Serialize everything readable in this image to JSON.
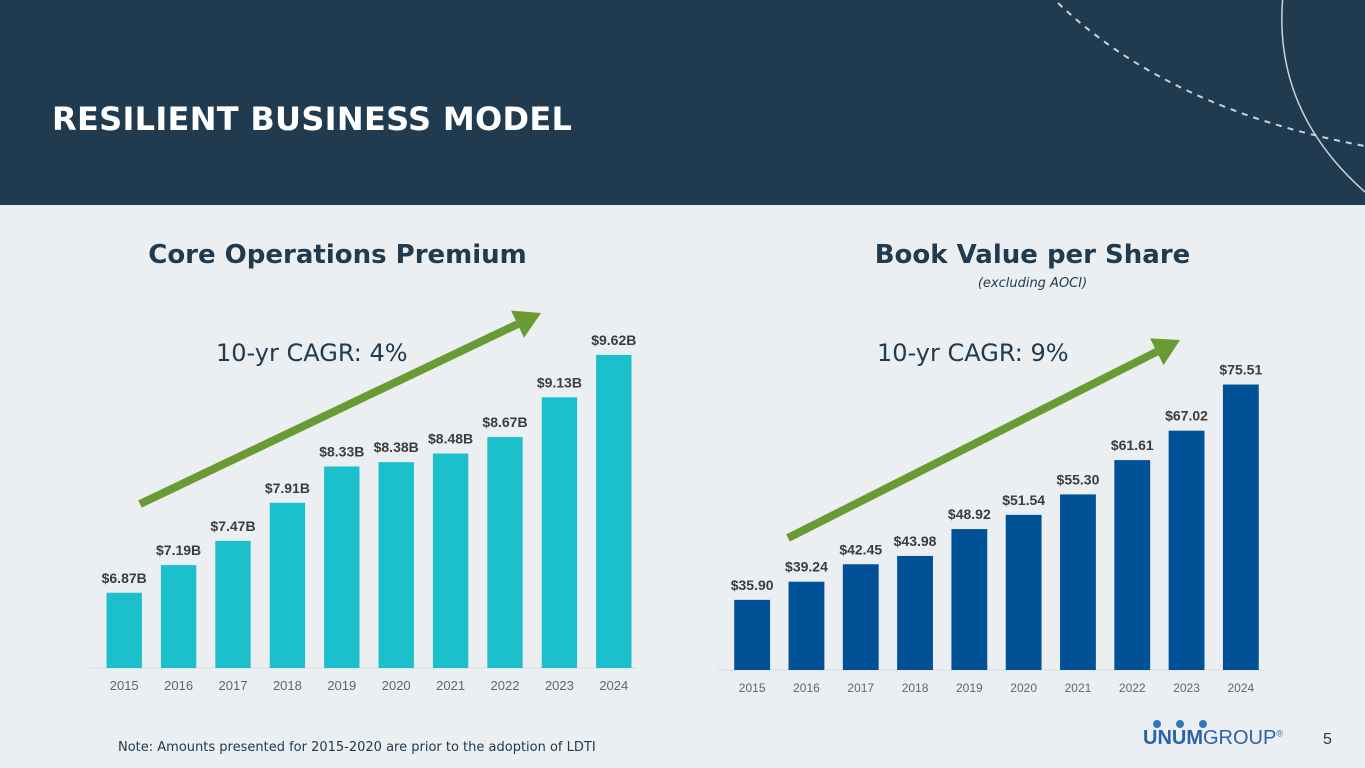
{
  "header": {
    "title": "RESILIENT BUSINESS MODEL"
  },
  "colors": {
    "header_bg": "#203a4f",
    "premium_bars": "#1cc0cc",
    "book_value_bars": "#005196",
    "trend_arrow": "#6a9a33",
    "page_bg": "#ebeff2"
  },
  "chart_data": [
    {
      "type": "bar",
      "title": "Core Operations Premium",
      "subtitle": "",
      "annotation": "10-yr CAGR: 4%",
      "categories": [
        "2015",
        "2016",
        "2017",
        "2018",
        "2019",
        "2020",
        "2021",
        "2022",
        "2023",
        "2024"
      ],
      "values": [
        6.87,
        7.19,
        7.47,
        7.91,
        8.33,
        8.38,
        8.48,
        8.67,
        9.13,
        9.62
      ],
      "data_labels": [
        "$6.87B",
        "$7.19B",
        "$7.47B",
        "$7.91B",
        "$8.33B",
        "$8.38B",
        "$8.48B",
        "$8.67B",
        "$9.13B",
        "$9.62B"
      ],
      "ylim": [
        6.0,
        9.7
      ],
      "xlabel": "",
      "ylabel": "",
      "grid": false
    },
    {
      "type": "bar",
      "title": "Book Value per Share",
      "subtitle": "(excluding AOCI)",
      "annotation": "10-yr CAGR: 9%",
      "categories": [
        "2015",
        "2016",
        "2017",
        "2018",
        "2019",
        "2020",
        "2021",
        "2022",
        "2023",
        "2024"
      ],
      "values": [
        35.9,
        39.24,
        42.45,
        43.98,
        48.92,
        51.54,
        55.3,
        61.61,
        67.02,
        75.51
      ],
      "data_labels": [
        "$35.90",
        "$39.24",
        "$42.45",
        "$43.98",
        "$48.92",
        "$51.54",
        "$55.30",
        "$61.61",
        "$67.02",
        "$75.51"
      ],
      "ylim": [
        23.0,
        78.0
      ],
      "xlabel": "",
      "ylabel": "",
      "grid": false
    }
  ],
  "footer": {
    "note": "Note: Amounts presented for 2015-2020 are prior to the adoption of LDTI",
    "logo_bold": "UNUM",
    "logo_rest": "GROUP",
    "logo_mark": "®",
    "page_number": "5"
  }
}
